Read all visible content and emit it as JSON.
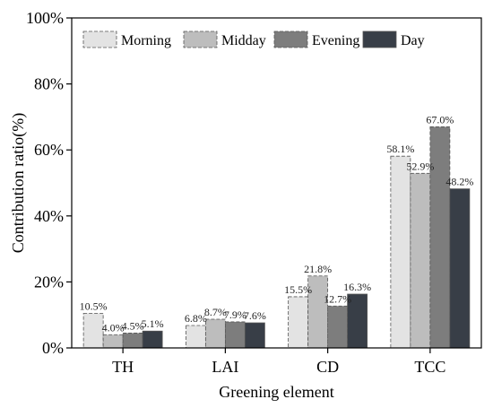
{
  "chart_data": {
    "type": "bar",
    "title": "",
    "xlabel": "Greening element",
    "ylabel": "Contribution ratio(%)",
    "ylim": [
      0,
      100
    ],
    "yticks": [
      0,
      20,
      40,
      60,
      80,
      100
    ],
    "ytick_labels": [
      "0%",
      "20%",
      "40%",
      "60%",
      "80%",
      "100%"
    ],
    "grid": false,
    "legend_position": "top",
    "categories": [
      "TH",
      "LAI",
      "CD",
      "TCC"
    ],
    "series": [
      {
        "name": "Morning",
        "color": "#e3e3e3",
        "values": [
          10.5,
          6.8,
          15.5,
          58.1
        ],
        "labels": [
          "10.5%",
          "6.8%",
          "15.5%",
          "58.1%"
        ]
      },
      {
        "name": "Midday",
        "color": "#bdbdbd",
        "values": [
          4.0,
          8.7,
          21.8,
          52.9
        ],
        "labels": [
          "4.0%",
          "8.7%",
          "21.8%",
          "52.9%"
        ]
      },
      {
        "name": "Evening",
        "color": "#7d7d7d",
        "values": [
          4.5,
          7.9,
          12.7,
          67.0
        ],
        "labels": [
          "4.5%",
          "7.9%",
          "12.7%",
          "67.0%"
        ]
      },
      {
        "name": "Day",
        "color": "#383e47",
        "values": [
          5.1,
          7.6,
          16.3,
          48.2
        ],
        "labels": [
          "5.1%",
          "7.6%",
          "16.3%",
          "48.2%"
        ]
      }
    ]
  }
}
